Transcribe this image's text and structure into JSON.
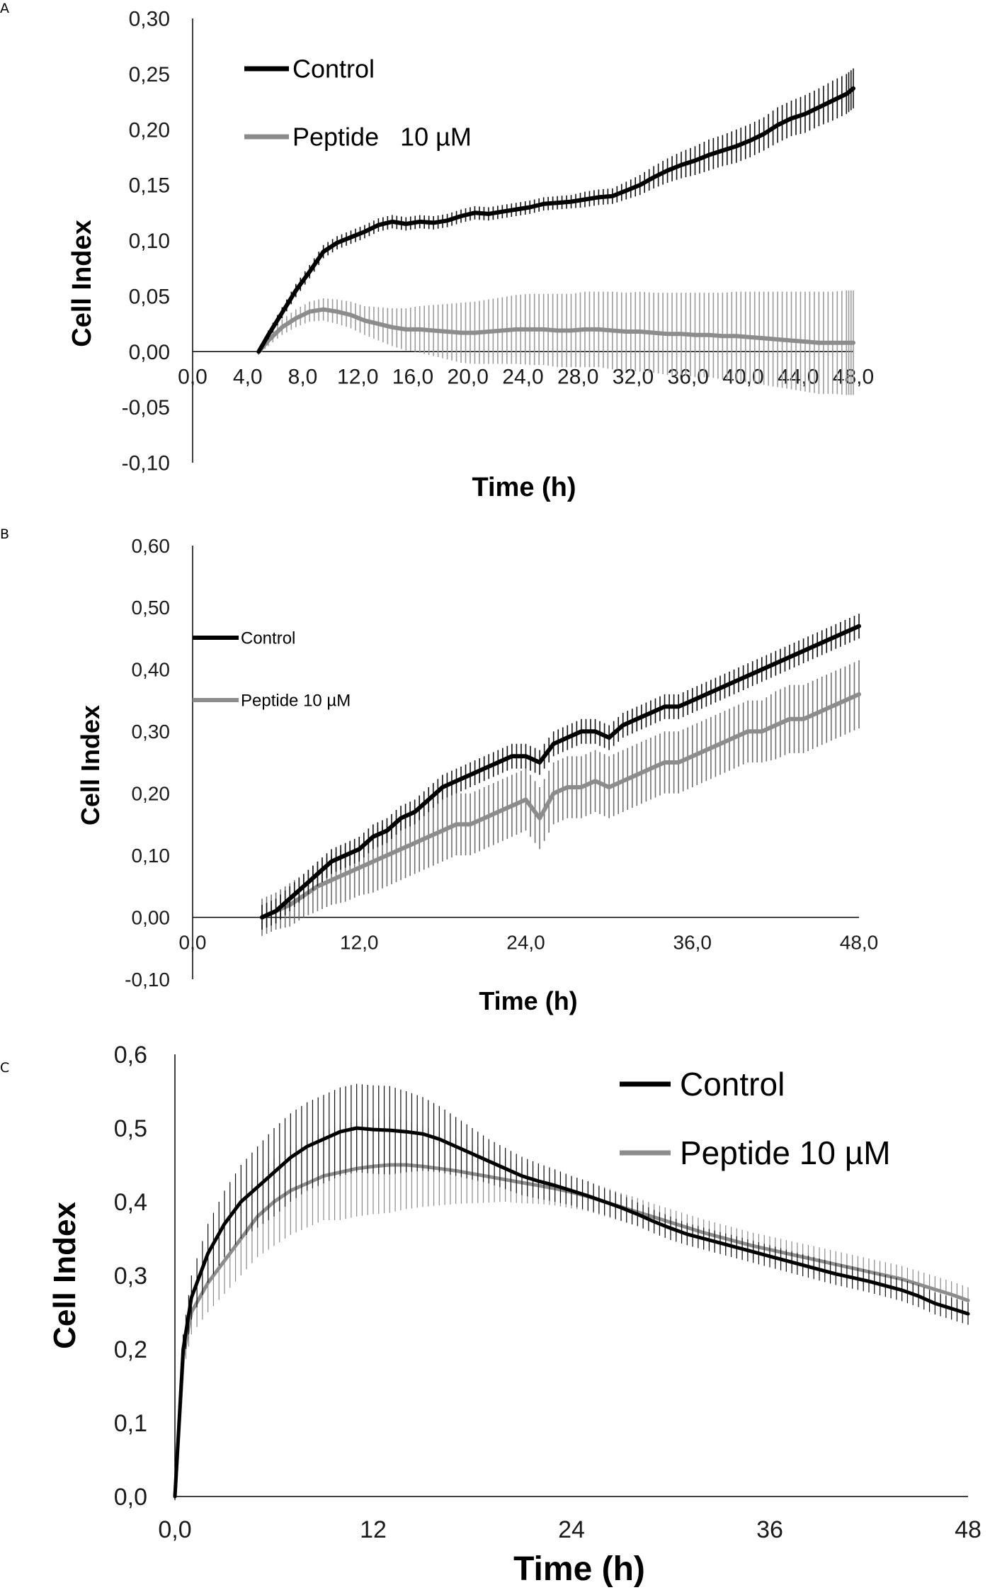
{
  "colors": {
    "control": "#000000",
    "peptide": "#8c8c8c"
  },
  "chart_data": [
    {
      "panel": "A",
      "type": "line",
      "xlabel": "Time (h)",
      "ylabel": "Cell Index",
      "xlim": [
        0,
        48
      ],
      "ylim": [
        -0.1,
        0.3
      ],
      "x_tick_values": [
        0,
        4,
        8,
        12,
        16,
        20,
        24,
        28,
        32,
        36,
        40,
        44,
        48
      ],
      "x_tick_labels": [
        "0,0",
        "4,0",
        "8,0",
        "12,0",
        "16,0",
        "20,0",
        "24,0",
        "28,0",
        "32,0",
        "36,0",
        "40,0",
        "44,0",
        "48,0"
      ],
      "y_tick_values": [
        -0.1,
        -0.05,
        0,
        0.05,
        0.1,
        0.15,
        0.2,
        0.25,
        0.3
      ],
      "y_tick_labels": [
        "-0,10",
        "-0,05",
        "0,00",
        "0,05",
        "0,10",
        "0,15",
        "0,20",
        "0,25",
        "0,30"
      ],
      "legend": [
        "Control",
        "Peptide   10 µM"
      ],
      "series": [
        {
          "name": "Control",
          "x": [
            4.8,
            5.5,
            6.5,
            7.5,
            8.5,
            9.5,
            10.5,
            11.5,
            12.5,
            13.5,
            14.5,
            15.5,
            16.5,
            17.5,
            18.5,
            19.5,
            20.5,
            21.5,
            22.5,
            23.5,
            24.5,
            25.5,
            26.5,
            27.5,
            28.5,
            29.5,
            30.5,
            31.5,
            32.5,
            33.5,
            34.5,
            35.5,
            36.5,
            37.5,
            38.5,
            39.5,
            40.5,
            41.5,
            42.5,
            43.5,
            44.5,
            45.5,
            46.5,
            47.5,
            48.0
          ],
          "y": [
            0.0,
            0.015,
            0.035,
            0.055,
            0.072,
            0.09,
            0.098,
            0.103,
            0.108,
            0.114,
            0.117,
            0.115,
            0.117,
            0.116,
            0.118,
            0.122,
            0.125,
            0.124,
            0.126,
            0.128,
            0.13,
            0.133,
            0.134,
            0.135,
            0.137,
            0.139,
            0.14,
            0.145,
            0.15,
            0.157,
            0.163,
            0.168,
            0.172,
            0.177,
            0.181,
            0.185,
            0.19,
            0.196,
            0.204,
            0.21,
            0.214,
            0.22,
            0.226,
            0.232,
            0.237
          ],
          "err": [
            0.002,
            0.004,
            0.005,
            0.006,
            0.006,
            0.006,
            0.006,
            0.006,
            0.006,
            0.006,
            0.006,
            0.006,
            0.006,
            0.006,
            0.006,
            0.006,
            0.006,
            0.006,
            0.006,
            0.006,
            0.006,
            0.006,
            0.006,
            0.006,
            0.007,
            0.007,
            0.007,
            0.008,
            0.009,
            0.01,
            0.011,
            0.012,
            0.013,
            0.014,
            0.014,
            0.015,
            0.015,
            0.015,
            0.016,
            0.016,
            0.017,
            0.017,
            0.018,
            0.018,
            0.018
          ]
        },
        {
          "name": "Peptide 10 µM",
          "x": [
            4.8,
            5.5,
            6.5,
            7.5,
            8.5,
            9.5,
            10.5,
            11.5,
            12.5,
            13.5,
            14.5,
            15.5,
            16.5,
            17.5,
            18.5,
            19.5,
            20.5,
            21.5,
            22.5,
            23.5,
            24.5,
            25.5,
            26.5,
            27.5,
            28.5,
            29.5,
            30.5,
            31.5,
            32.5,
            33.5,
            34.5,
            35.5,
            36.5,
            37.5,
            38.5,
            39.5,
            40.5,
            41.5,
            42.5,
            43.5,
            44.5,
            45.5,
            46.5,
            47.5,
            48.0
          ],
          "y": [
            0.0,
            0.01,
            0.022,
            0.03,
            0.036,
            0.038,
            0.036,
            0.033,
            0.028,
            0.025,
            0.022,
            0.02,
            0.02,
            0.019,
            0.018,
            0.017,
            0.017,
            0.018,
            0.019,
            0.02,
            0.02,
            0.02,
            0.019,
            0.019,
            0.02,
            0.02,
            0.019,
            0.018,
            0.018,
            0.017,
            0.016,
            0.016,
            0.015,
            0.015,
            0.014,
            0.014,
            0.013,
            0.012,
            0.011,
            0.01,
            0.009,
            0.008,
            0.008,
            0.008,
            0.008
          ],
          "err": [
            0.003,
            0.005,
            0.007,
            0.008,
            0.009,
            0.01,
            0.011,
            0.012,
            0.013,
            0.015,
            0.017,
            0.019,
            0.021,
            0.023,
            0.025,
            0.027,
            0.028,
            0.029,
            0.03,
            0.031,
            0.032,
            0.032,
            0.033,
            0.033,
            0.034,
            0.034,
            0.035,
            0.035,
            0.036,
            0.036,
            0.037,
            0.037,
            0.038,
            0.038,
            0.039,
            0.04,
            0.041,
            0.042,
            0.043,
            0.044,
            0.045,
            0.046,
            0.046,
            0.047,
            0.047
          ]
        }
      ]
    },
    {
      "panel": "B",
      "type": "line",
      "xlabel": "Time (h)",
      "ylabel": "Cell Index",
      "xlim": [
        0,
        48
      ],
      "ylim": [
        -0.1,
        0.6
      ],
      "x_tick_values": [
        0,
        12,
        24,
        36,
        48
      ],
      "x_tick_labels": [
        "0,0",
        "12,0",
        "24,0",
        "36,0",
        "48,0"
      ],
      "y_tick_values": [
        -0.1,
        0,
        0.1,
        0.2,
        0.3,
        0.4,
        0.5,
        0.6
      ],
      "y_tick_labels": [
        "-0,10",
        "0,00",
        "0,10",
        "0,20",
        "0,30",
        "0,40",
        "0,50",
        "0,60"
      ],
      "legend": [
        "Control",
        "Peptide 10 µM"
      ],
      "series": [
        {
          "name": "Control",
          "x": [
            5,
            6,
            7,
            8,
            9,
            10,
            11,
            12,
            13,
            14,
            15,
            16,
            17,
            18,
            19,
            20,
            21,
            22,
            23,
            24,
            25,
            26,
            27,
            28,
            29,
            30,
            31,
            32,
            33,
            34,
            35,
            36,
            37,
            38,
            39,
            40,
            41,
            42,
            43,
            44,
            45,
            46,
            47,
            48
          ],
          "y": [
            0.0,
            0.01,
            0.03,
            0.05,
            0.07,
            0.09,
            0.1,
            0.11,
            0.13,
            0.14,
            0.16,
            0.17,
            0.19,
            0.21,
            0.22,
            0.23,
            0.24,
            0.25,
            0.26,
            0.26,
            0.25,
            0.28,
            0.29,
            0.3,
            0.3,
            0.29,
            0.31,
            0.32,
            0.33,
            0.34,
            0.34,
            0.35,
            0.36,
            0.37,
            0.38,
            0.39,
            0.4,
            0.41,
            0.42,
            0.43,
            0.44,
            0.45,
            0.46,
            0.47
          ],
          "err": [
            0.02,
            0.02,
            0.02,
            0.02,
            0.02,
            0.02,
            0.02,
            0.02,
            0.02,
            0.02,
            0.02,
            0.02,
            0.02,
            0.02,
            0.02,
            0.02,
            0.02,
            0.02,
            0.02,
            0.02,
            0.02,
            0.02,
            0.02,
            0.02,
            0.02,
            0.02,
            0.02,
            0.02,
            0.02,
            0.02,
            0.02,
            0.02,
            0.02,
            0.02,
            0.02,
            0.02,
            0.02,
            0.02,
            0.02,
            0.02,
            0.02,
            0.02,
            0.02,
            0.02
          ]
        },
        {
          "name": "Peptide 10 µM",
          "x": [
            5,
            6,
            7,
            8,
            9,
            10,
            11,
            12,
            13,
            14,
            15,
            16,
            17,
            18,
            19,
            20,
            21,
            22,
            23,
            24,
            25,
            26,
            27,
            28,
            29,
            30,
            31,
            32,
            33,
            34,
            35,
            36,
            37,
            38,
            39,
            40,
            41,
            42,
            43,
            44,
            45,
            46,
            47,
            48
          ],
          "y": [
            0.0,
            0.01,
            0.02,
            0.035,
            0.05,
            0.06,
            0.07,
            0.08,
            0.09,
            0.1,
            0.11,
            0.12,
            0.13,
            0.14,
            0.15,
            0.15,
            0.16,
            0.17,
            0.18,
            0.19,
            0.16,
            0.2,
            0.21,
            0.21,
            0.22,
            0.21,
            0.22,
            0.23,
            0.24,
            0.25,
            0.25,
            0.26,
            0.27,
            0.28,
            0.29,
            0.3,
            0.3,
            0.31,
            0.32,
            0.32,
            0.33,
            0.34,
            0.35,
            0.36
          ],
          "err": [
            0.03,
            0.03,
            0.035,
            0.035,
            0.04,
            0.04,
            0.045,
            0.045,
            0.05,
            0.05,
            0.05,
            0.05,
            0.05,
            0.05,
            0.05,
            0.05,
            0.05,
            0.05,
            0.05,
            0.05,
            0.05,
            0.05,
            0.05,
            0.05,
            0.05,
            0.05,
            0.05,
            0.05,
            0.05,
            0.05,
            0.05,
            0.05,
            0.05,
            0.05,
            0.05,
            0.05,
            0.05,
            0.055,
            0.055,
            0.055,
            0.055,
            0.055,
            0.055,
            0.055
          ]
        }
      ]
    },
    {
      "panel": "C",
      "type": "line",
      "xlabel": "Time (h)",
      "ylabel": "Cell Index",
      "xlim": [
        0,
        48
      ],
      "ylim": [
        0,
        0.6
      ],
      "x_tick_values": [
        0,
        12,
        24,
        36,
        48
      ],
      "x_tick_labels": [
        "0,0",
        "12",
        "24",
        "36",
        "48"
      ],
      "y_tick_values": [
        0,
        0.1,
        0.2,
        0.3,
        0.4,
        0.5,
        0.6
      ],
      "y_tick_labels": [
        "0,0",
        "0,1",
        "0,2",
        "0,3",
        "0,4",
        "0,5",
        "0,6"
      ],
      "legend": [
        "Control",
        "Peptide 10 µM"
      ],
      "series": [
        {
          "name": "Control",
          "x": [
            0,
            0.5,
            1,
            2,
            3,
            4,
            5,
            6,
            7,
            8,
            9,
            10,
            11,
            12,
            13,
            14,
            15,
            16,
            17,
            18,
            19,
            20,
            21,
            22,
            23,
            24,
            25,
            26,
            27,
            28,
            29,
            30,
            31,
            32,
            33,
            34,
            35,
            36,
            37,
            38,
            39,
            40,
            41,
            42,
            43,
            44,
            45,
            46,
            47,
            48
          ],
          "y": [
            0.0,
            0.2,
            0.27,
            0.33,
            0.37,
            0.4,
            0.42,
            0.44,
            0.46,
            0.475,
            0.485,
            0.495,
            0.5,
            0.498,
            0.497,
            0.495,
            0.492,
            0.485,
            0.475,
            0.465,
            0.455,
            0.445,
            0.435,
            0.428,
            0.422,
            0.415,
            0.408,
            0.4,
            0.392,
            0.383,
            0.373,
            0.364,
            0.356,
            0.35,
            0.344,
            0.338,
            0.332,
            0.326,
            0.32,
            0.314,
            0.308,
            0.302,
            0.297,
            0.292,
            0.286,
            0.28,
            0.272,
            0.262,
            0.255,
            0.248
          ],
          "err": [
            0.005,
            0.02,
            0.03,
            0.04,
            0.045,
            0.05,
            0.055,
            0.06,
            0.06,
            0.06,
            0.06,
            0.06,
            0.06,
            0.06,
            0.06,
            0.055,
            0.05,
            0.045,
            0.04,
            0.035,
            0.03,
            0.028,
            0.026,
            0.024,
            0.022,
            0.02,
            0.02,
            0.018,
            0.018,
            0.016,
            0.016,
            0.016,
            0.015,
            0.015,
            0.015,
            0.015,
            0.015,
            0.015,
            0.015,
            0.015,
            0.015,
            0.015,
            0.015,
            0.015,
            0.015,
            0.015,
            0.015,
            0.015,
            0.015,
            0.015
          ]
        },
        {
          "name": "Peptide 10 µM",
          "x": [
            0,
            0.5,
            1,
            2,
            3,
            4,
            5,
            6,
            7,
            8,
            9,
            10,
            11,
            12,
            13,
            14,
            15,
            16,
            17,
            18,
            19,
            20,
            21,
            22,
            23,
            24,
            25,
            26,
            27,
            28,
            29,
            30,
            31,
            32,
            33,
            34,
            35,
            36,
            37,
            38,
            39,
            40,
            41,
            42,
            43,
            44,
            45,
            46,
            47,
            48
          ],
          "y": [
            0.0,
            0.19,
            0.25,
            0.29,
            0.32,
            0.35,
            0.38,
            0.4,
            0.415,
            0.425,
            0.435,
            0.44,
            0.445,
            0.448,
            0.45,
            0.45,
            0.448,
            0.445,
            0.442,
            0.438,
            0.434,
            0.43,
            0.426,
            0.422,
            0.418,
            0.413,
            0.407,
            0.4,
            0.393,
            0.386,
            0.379,
            0.372,
            0.365,
            0.358,
            0.352,
            0.346,
            0.34,
            0.335,
            0.33,
            0.325,
            0.32,
            0.315,
            0.31,
            0.305,
            0.3,
            0.295,
            0.288,
            0.281,
            0.274,
            0.266
          ],
          "err": [
            0.005,
            0.02,
            0.03,
            0.04,
            0.045,
            0.05,
            0.055,
            0.06,
            0.06,
            0.06,
            0.06,
            0.065,
            0.065,
            0.065,
            0.065,
            0.06,
            0.055,
            0.05,
            0.045,
            0.04,
            0.035,
            0.03,
            0.028,
            0.025,
            0.023,
            0.022,
            0.02,
            0.02,
            0.019,
            0.019,
            0.018,
            0.018,
            0.018,
            0.018,
            0.018,
            0.018,
            0.018,
            0.018,
            0.018,
            0.018,
            0.018,
            0.018,
            0.018,
            0.018,
            0.018,
            0.018,
            0.018,
            0.018,
            0.018,
            0.018
          ]
        }
      ]
    }
  ],
  "panels": {
    "a": {
      "label": "A"
    },
    "b": {
      "label": "B"
    },
    "c": {
      "label": "C"
    }
  }
}
